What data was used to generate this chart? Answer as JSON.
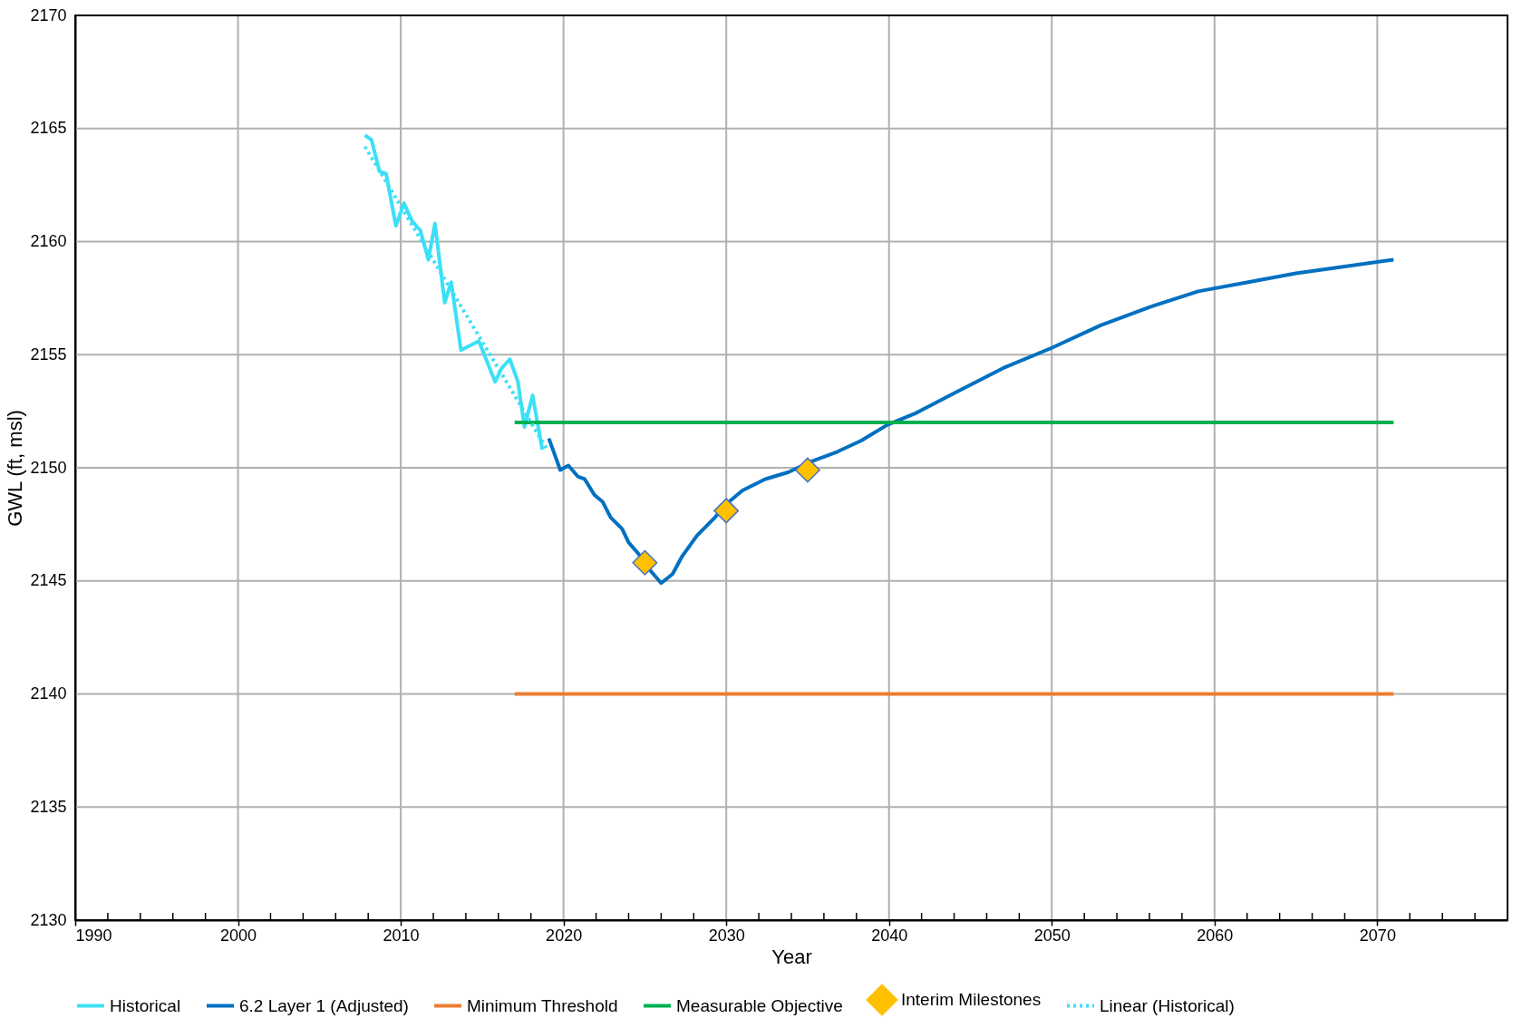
{
  "chart_data": {
    "type": "line",
    "xlabel": "Year",
    "ylabel": "GWL (ft, msl)",
    "xlim": [
      1990,
      2078
    ],
    "ylim": [
      2130,
      2170
    ],
    "xticks": [
      1990,
      {
        "value": 1992,
        "label": null
      },
      {
        "value": 1994,
        "label": null
      },
      {
        "value": 1996,
        "label": null
      },
      {
        "value": 1998,
        "label": null
      },
      2000,
      {
        "value": 2002,
        "label": null
      },
      {
        "value": 2004,
        "label": null
      },
      {
        "value": 2006,
        "label": null
      },
      {
        "value": 2008,
        "label": null
      },
      2010,
      {
        "value": 2012,
        "label": null
      },
      {
        "value": 2014,
        "label": null
      },
      {
        "value": 2016,
        "label": null
      },
      {
        "value": 2018,
        "label": null
      },
      2020,
      {
        "value": 2022,
        "label": null
      },
      {
        "value": 2024,
        "label": null
      },
      {
        "value": 2026,
        "label": null
      },
      {
        "value": 2028,
        "label": null
      },
      2030,
      {
        "value": 2032,
        "label": null
      },
      {
        "value": 2034,
        "label": null
      },
      {
        "value": 2036,
        "label": null
      },
      {
        "value": 2038,
        "label": null
      },
      2040,
      {
        "value": 2042,
        "label": null
      },
      {
        "value": 2044,
        "label": null
      },
      {
        "value": 2046,
        "label": null
      },
      {
        "value": 2048,
        "label": null
      },
      2050,
      {
        "value": 2052,
        "label": null
      },
      {
        "value": 2054,
        "label": null
      },
      {
        "value": 2056,
        "label": null
      },
      {
        "value": 2058,
        "label": null
      },
      2060,
      {
        "value": 2062,
        "label": null
      },
      {
        "value": 2064,
        "label": null
      },
      {
        "value": 2066,
        "label": null
      },
      {
        "value": 2068,
        "label": null
      },
      2070,
      {
        "value": 2072,
        "label": null
      },
      {
        "value": 2074,
        "label": null
      },
      {
        "value": 2076,
        "label": null
      }
    ],
    "yticks": [
      2130,
      2135,
      2140,
      2145,
      2150,
      2155,
      2160,
      2165,
      2170
    ],
    "grid": true,
    "legend": "bottom",
    "series": [
      {
        "name": "Historical",
        "color": "#3be0f7",
        "line_style": "solid",
        "x": [
          2007.8,
          2008.2,
          2008.7,
          2009.1,
          2009.7,
          2010.2,
          2010.7,
          2011.2,
          2011.7,
          2012.1,
          2012.7,
          2013.1,
          2013.7,
          2014.8,
          2015.8,
          2016.2,
          2016.7,
          2017.2,
          2017.6,
          2018.1,
          2018.7
        ],
        "values": [
          2164.7,
          2164.5,
          2163.1,
          2163.0,
          2160.7,
          2161.7,
          2160.9,
          2160.5,
          2159.2,
          2160.8,
          2157.3,
          2158.2,
          2155.2,
          2155.6,
          2153.8,
          2154.4,
          2154.8,
          2153.8,
          2151.8,
          2153.2,
          2150.8
        ]
      },
      {
        "name": "6.2 Layer 1 (Adjusted)",
        "color": "#0070c0",
        "line_style": "solid",
        "x": [
          2019.1,
          2019.8,
          2020.3,
          2020.9,
          2021.3,
          2021.9,
          2022.4,
          2022.9,
          2023.6,
          2024.0,
          2024.6,
          2025.4,
          2026.0,
          2026.7,
          2027.3,
          2028.2,
          2029.3,
          2030.0,
          2031.0,
          2032.4,
          2033.8,
          2035.3,
          2036.8,
          2038.3,
          2039.9,
          2041.6,
          2044.0,
          2047.0,
          2050.0,
          2053.0,
          2056.0,
          2059.0,
          2062.0,
          2065.0,
          2068.0,
          2071.0
        ],
        "values": [
          2151.3,
          2149.9,
          2150.1,
          2149.6,
          2149.5,
          2148.8,
          2148.5,
          2147.8,
          2147.3,
          2146.7,
          2146.2,
          2145.4,
          2144.9,
          2145.3,
          2146.1,
          2147.0,
          2147.8,
          2148.4,
          2149.0,
          2149.5,
          2149.8,
          2150.3,
          2150.7,
          2151.2,
          2151.9,
          2152.4,
          2153.3,
          2154.4,
          2155.3,
          2156.3,
          2157.1,
          2157.8,
          2158.2,
          2158.6,
          2158.9,
          2159.2
        ]
      },
      {
        "name": "Minimum Threshold",
        "color": "#ed7d31",
        "line_style": "solid",
        "x": [
          2017,
          2071
        ],
        "values": [
          2140,
          2140
        ]
      },
      {
        "name": "Measurable Objective",
        "color": "#00b050",
        "line_style": "solid",
        "x": [
          2017,
          2071
        ],
        "values": [
          2152,
          2152
        ]
      },
      {
        "name": "Interim Milestones",
        "type": "scatter",
        "color": "#ffc000",
        "marker": "diamond",
        "x": [
          2025,
          2030,
          2035
        ],
        "values": [
          2145.8,
          2148.1,
          2149.9
        ]
      },
      {
        "name": "Linear (Historical)",
        "color": "#3be0f7",
        "line_style": "dotted",
        "x": [
          2007.8,
          2019.0
        ],
        "values": [
          2164.2,
          2150.8
        ]
      }
    ]
  }
}
